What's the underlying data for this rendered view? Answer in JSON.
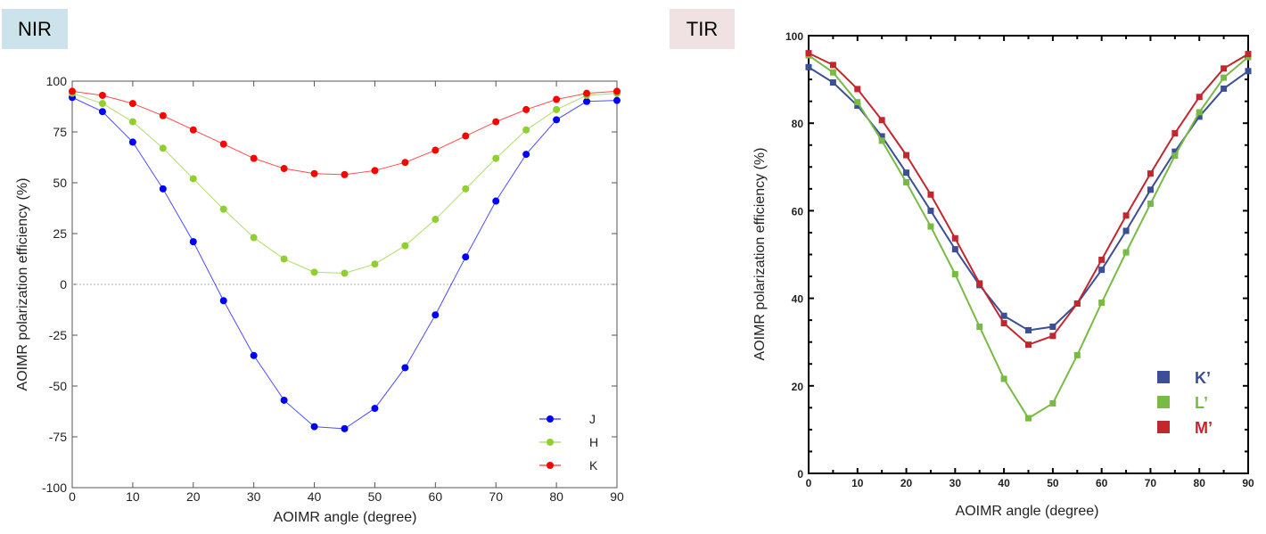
{
  "panels": {
    "left_label": "NIR",
    "left_label_color": "#cde3ec",
    "right_label": "TIR",
    "right_label_color": "#f0e2e2"
  },
  "chart_data": [
    {
      "type": "line",
      "xlabel": "AOIMR angle (degree)",
      "ylabel": "AOIMR polarization efficiency (%)",
      "xlim": [
        0,
        90
      ],
      "ylim": [
        -100,
        100
      ],
      "xticks": [
        0,
        10,
        20,
        30,
        40,
        50,
        60,
        70,
        80,
        90
      ],
      "yticks": [
        -100,
        -75,
        -50,
        -25,
        0,
        25,
        50,
        75,
        100
      ],
      "reference_line": 0,
      "legend": "bottom-right",
      "marker": "circle",
      "x": [
        0,
        5,
        10,
        15,
        20,
        25,
        30,
        35,
        40,
        45,
        50,
        55,
        60,
        65,
        70,
        75,
        80,
        85,
        90
      ],
      "series": [
        {
          "name": "J",
          "color": "#0000ff",
          "values": [
            92,
            85,
            70,
            47,
            21,
            -8,
            -35,
            -57,
            -70,
            -71,
            -61,
            -41,
            -15,
            13.5,
            41,
            64,
            81,
            90,
            90.5
          ]
        },
        {
          "name": "H",
          "color": "#8fcf2e",
          "values": [
            94,
            89,
            80,
            67,
            52,
            37,
            23,
            12.5,
            6,
            5.5,
            10,
            19,
            32,
            47,
            62,
            76,
            86,
            93,
            94
          ]
        },
        {
          "name": "K",
          "color": "#ff0000",
          "values": [
            95,
            93,
            89,
            83,
            76,
            69,
            62,
            57,
            54.5,
            54,
            56,
            60,
            66,
            73,
            80,
            86,
            91,
            94,
            95
          ]
        }
      ]
    },
    {
      "type": "line",
      "xlabel": "AOIMR angle (degree)",
      "ylabel": "AOIMR polarization efficiency (%)",
      "xlim": [
        0,
        90
      ],
      "ylim": [
        0,
        100
      ],
      "xticks": [
        0,
        10,
        20,
        30,
        40,
        50,
        60,
        70,
        80,
        90
      ],
      "yticks": [
        0,
        20,
        40,
        60,
        80,
        100
      ],
      "legend": "bottom-right",
      "marker": "square",
      "x": [
        0,
        5,
        10,
        15,
        20,
        25,
        30,
        35,
        40,
        45,
        50,
        55,
        60,
        65,
        70,
        75,
        80,
        85,
        90
      ],
      "series": [
        {
          "name": "K’",
          "color": "#3b4f96",
          "values": [
            92.8,
            89.3,
            84,
            77,
            68.7,
            60,
            51.2,
            43,
            36,
            32.7,
            33.5,
            38.8,
            46.5,
            55.4,
            64.8,
            73.5,
            81.5,
            87.9,
            91.9
          ]
        },
        {
          "name": "L’",
          "color": "#77bb44",
          "values": [
            95.5,
            91.6,
            84.8,
            76,
            66.5,
            56.4,
            45.5,
            33.5,
            21.6,
            12.6,
            16,
            27,
            39,
            50.5,
            61.6,
            72.6,
            82.5,
            90.4,
            95.1
          ]
        },
        {
          "name": "M’",
          "color": "#c1272d",
          "values": [
            96,
            93.3,
            87.8,
            80.7,
            72.7,
            63.7,
            53.7,
            43.4,
            34.3,
            29.4,
            31.4,
            38.8,
            48.8,
            58.9,
            68.5,
            77.7,
            86,
            92.5,
            95.8
          ]
        }
      ]
    }
  ]
}
